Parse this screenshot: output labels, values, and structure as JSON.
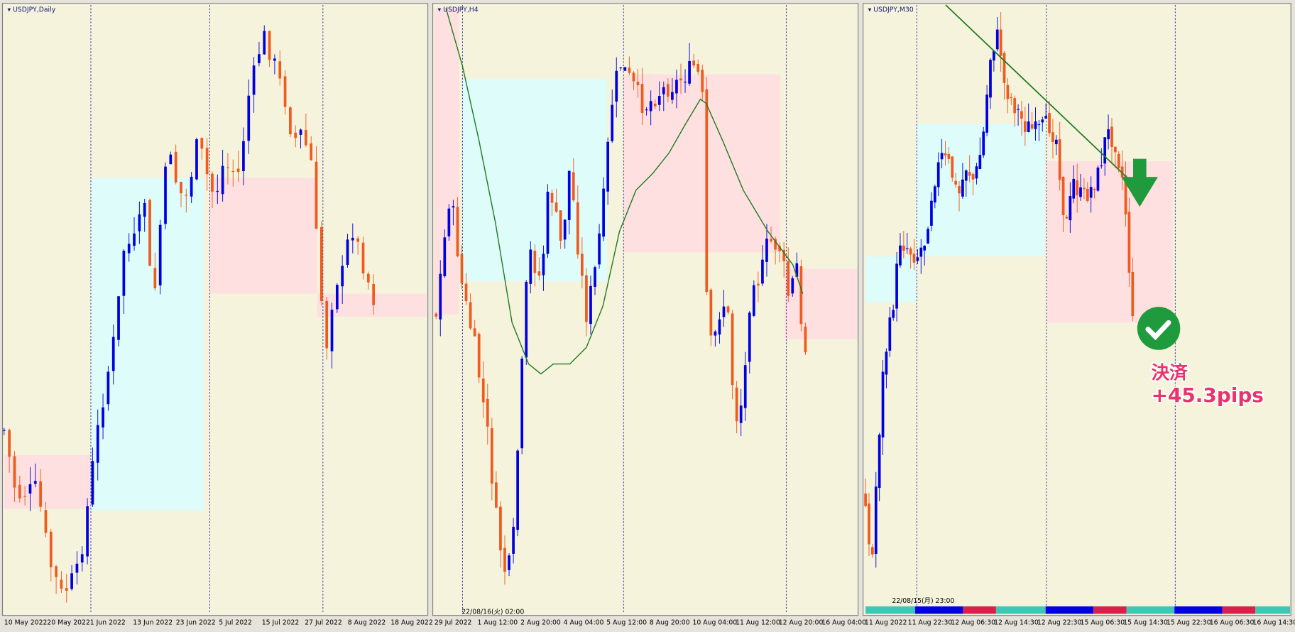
{
  "panels": [
    {
      "title": "USDJPY,Daily",
      "x_labels": [
        "10 May 2022",
        "20 May 2022",
        "1 Jun 2022",
        "13 Jun 2022",
        "23 Jun 2022",
        "5 Jul 2022",
        "15 Jul 2022",
        "27 Jul 2022",
        "8 Aug 2022",
        "18 Aug 2022"
      ]
    },
    {
      "title": "USDJPY,H4",
      "cursor_label": "22/08/16(火) 02:00",
      "x_labels": [
        "29 Jul 2022",
        "1 Aug 12:00",
        "2 Aug 20:00",
        "4 Aug 04:00",
        "5 Aug 12:00",
        "8 Aug 20:00",
        "10 Aug 04:00",
        "11 Aug 12:00",
        "12 Aug 20:00",
        "16 Aug 04:00"
      ]
    },
    {
      "title": "USDJPY,M30",
      "cursor_label": "22/08/15(月) 23:00",
      "x_labels": [
        "11 Aug 2022",
        "11 Aug 22:30",
        "12 Aug 06:30",
        "12 Aug 14:30",
        "12 Aug 22:30",
        "15 Aug 06:30",
        "15 Aug 14:30",
        "15 Aug 22:30",
        "16 Aug 06:30",
        "16 Aug 14:30"
      ]
    }
  ],
  "annotation": {
    "status": "決済",
    "result": "+45.3pips"
  }
}
